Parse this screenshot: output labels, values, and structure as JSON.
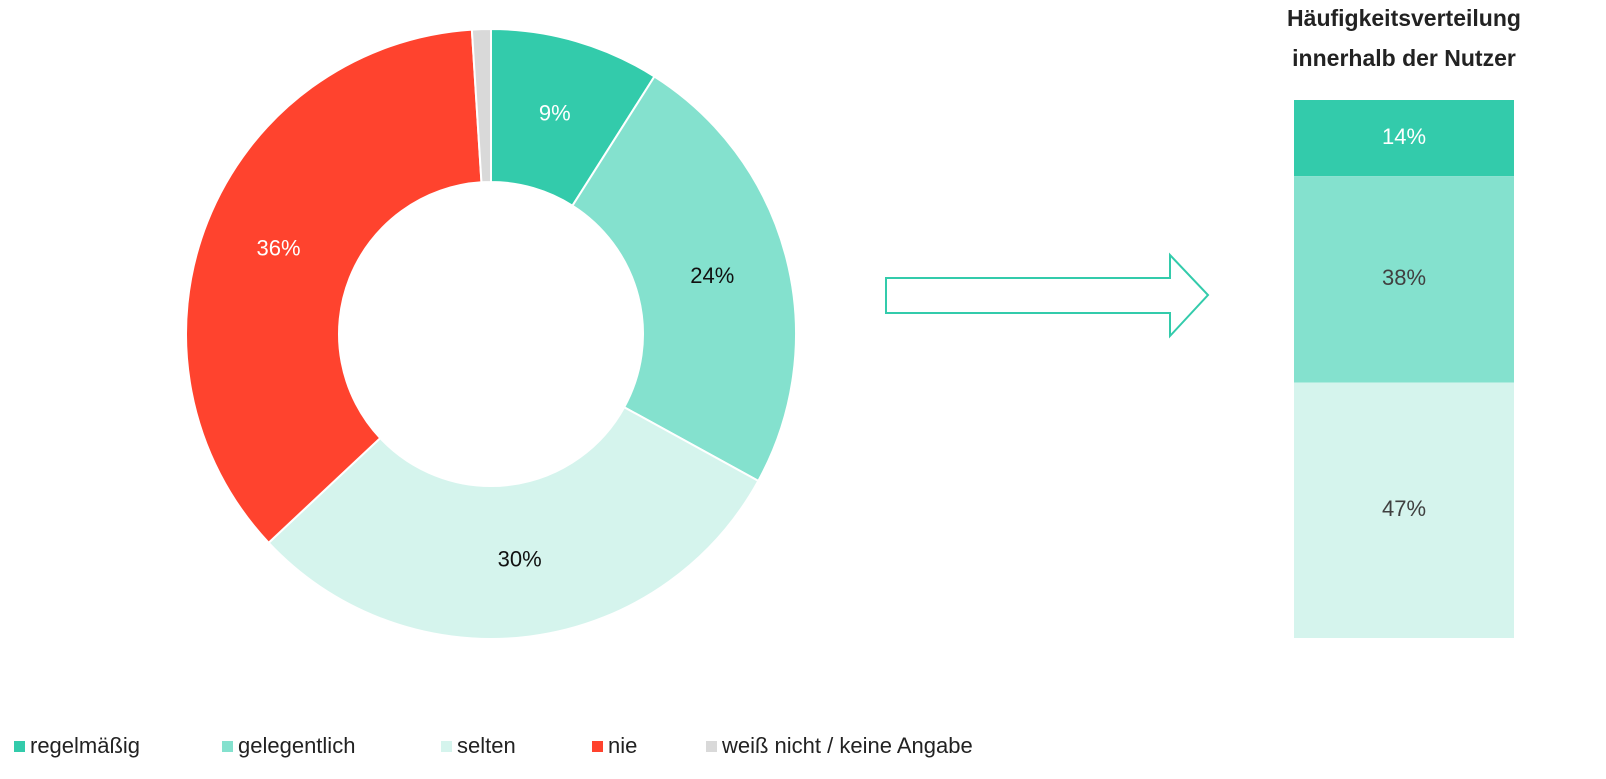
{
  "chart_data": [
    {
      "type": "donut",
      "categories": [
        "regelmäßig",
        "gelegentlich",
        "selten",
        "nie",
        "weiß nicht / keine Angabe"
      ],
      "values": [
        9,
        24,
        30,
        36,
        1
      ],
      "value_labels": [
        "9%",
        "24%",
        "30%",
        "36%",
        null
      ],
      "colors": [
        "#33cbab",
        "#84e1ce",
        "#d5f4ed",
        "#ff432e",
        "#d9d9d9"
      ],
      "legend": "bottom"
    },
    {
      "type": "stacked-column",
      "title": [
        "Häufigkeitsverteilung",
        "innerhalb der Nutzer"
      ],
      "values": [
        14,
        38,
        47
      ],
      "value_labels": [
        "14%",
        "38%",
        "47%"
      ],
      "colors": [
        "#33cbab",
        "#84e1ce",
        "#d5f4ed"
      ]
    }
  ]
}
